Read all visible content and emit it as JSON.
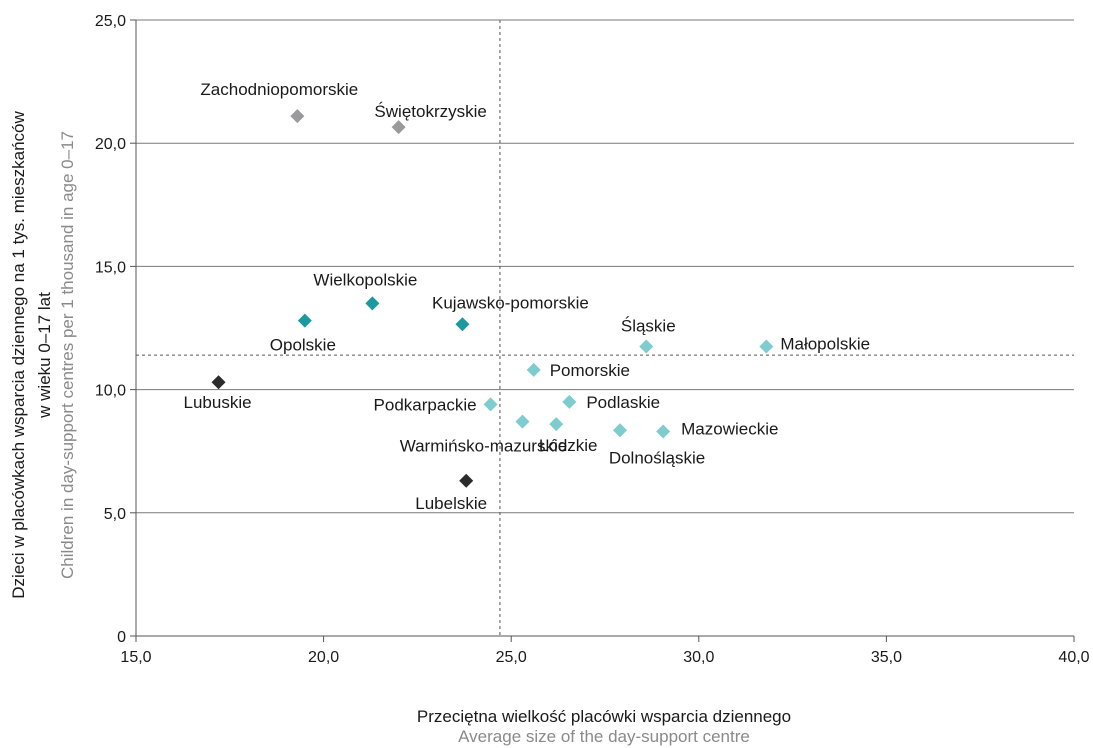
{
  "chart_data": {
    "type": "scatter",
    "xlim": [
      15,
      40
    ],
    "ylim": [
      0,
      25
    ],
    "x_ticks": [
      {
        "value": 15,
        "label": "15,0"
      },
      {
        "value": 20,
        "label": "20,0"
      },
      {
        "value": 25,
        "label": "25,0"
      },
      {
        "value": 30,
        "label": "30,0"
      },
      {
        "value": 35,
        "label": "35,0"
      },
      {
        "value": 40,
        "label": "40,0"
      }
    ],
    "y_ticks": [
      {
        "value": 0,
        "label": "0"
      },
      {
        "value": 5,
        "label": "5,0"
      },
      {
        "value": 10,
        "label": "10,0"
      },
      {
        "value": 15,
        "label": "15,0"
      },
      {
        "value": 20,
        "label": "20,0"
      },
      {
        "value": 25,
        "label": "25,0"
      }
    ],
    "xlabel": "Przeciętna wielkość placówki wsparcia dziennego",
    "xlabel_en": "Average size of the day-support centre",
    "ylabel_line1": "Dzieci w placówkach wsparcia dziennego na 1 tys. mieszkańców",
    "ylabel_line2": "w wieku 0–17 lat",
    "ylabel_en": "Children in day-support centres per 1 thousand in age 0–17",
    "grid": "horizontal",
    "reference_lines": {
      "x": 24.7,
      "y": 11.4
    },
    "colors": {
      "gray": "#9a9a9c",
      "teal": "#1a9aa0",
      "black": "#2b2b2b",
      "light_teal": "#7ecccd"
    },
    "points": [
      {
        "name": "Zachodniopomorskie",
        "x": 19.3,
        "y": 21.1,
        "color": "gray"
      },
      {
        "name": "Świętokrzyskie",
        "x": 22.0,
        "y": 20.65,
        "color": "gray"
      },
      {
        "name": "Wielkopolskie",
        "x": 21.3,
        "y": 13.5,
        "color": "teal"
      },
      {
        "name": "Opolskie",
        "x": 19.5,
        "y": 12.8,
        "color": "teal"
      },
      {
        "name": "Kujawsko-pomorskie",
        "x": 23.7,
        "y": 12.65,
        "color": "teal"
      },
      {
        "name": "Lubuskie",
        "x": 17.2,
        "y": 10.3,
        "color": "black"
      },
      {
        "name": "Lubelskie",
        "x": 23.8,
        "y": 6.3,
        "color": "black"
      },
      {
        "name": "Śląskie",
        "x": 28.6,
        "y": 11.75,
        "color": "light_teal"
      },
      {
        "name": "Małopolskie",
        "x": 31.8,
        "y": 11.75,
        "color": "light_teal"
      },
      {
        "name": "Pomorskie",
        "x": 25.6,
        "y": 10.8,
        "color": "light_teal"
      },
      {
        "name": "Podkarpackie",
        "x": 24.45,
        "y": 9.4,
        "color": "light_teal"
      },
      {
        "name": "Podlaskie",
        "x": 26.55,
        "y": 9.5,
        "color": "light_teal"
      },
      {
        "name": "Warmińsko-mazurskie",
        "x": 25.3,
        "y": 8.7,
        "color": "light_teal"
      },
      {
        "name": "Łódzkie",
        "x": 26.2,
        "y": 8.6,
        "color": "light_teal"
      },
      {
        "name": "Dolnośląskie",
        "x": 27.9,
        "y": 8.35,
        "color": "light_teal"
      },
      {
        "name": "Mazowieckie",
        "x": 29.05,
        "y": 8.3,
        "color": "light_teal"
      }
    ]
  }
}
